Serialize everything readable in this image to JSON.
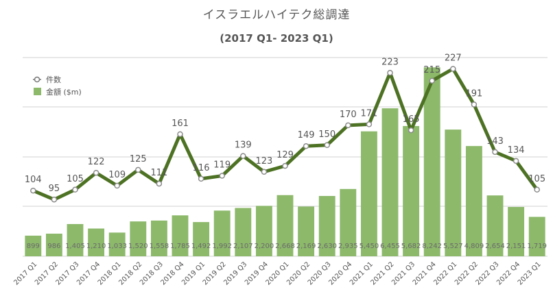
{
  "chart_data": {
    "type": "bar",
    "title": "イスラエルハイテク総調達",
    "subtitle": "(2017 Q1- 2023 Q1)",
    "categories": [
      "2017 Q1",
      "2017 Q2",
      "2017 Q3",
      "2017 Q4",
      "2018 Q1",
      "2018 Q2",
      "2018 Q3",
      "2018 Q4",
      "2019 Q1",
      "2019 Q2",
      "2019 Q3",
      "2019 Q4",
      "2020 Q1",
      "2020 Q2",
      "2020 Q3",
      "2020 Q4",
      "2021 Q1",
      "2021 Q2",
      "2021 Q3",
      "2021 Q4",
      "2022 Q1",
      "2022 Q2",
      "2022 Q3",
      "2022 Q4",
      "2023 Q1"
    ],
    "series": [
      {
        "name": "金額 ($m)",
        "type": "bar",
        "color": "#8db96b",
        "values": [
          899,
          986,
          1405,
          1210,
          1033,
          1520,
          1558,
          1785,
          1492,
          1992,
          2107,
          2200,
          2668,
          2169,
          2630,
          2935,
          5450,
          6455,
          5682,
          8242,
          5527,
          4809,
          2654,
          2151,
          1719
        ],
        "labels": [
          "899",
          "986",
          "1,405",
          "1,210",
          "1,033",
          "1,520",
          "1,558",
          "1,785",
          "1,492",
          "1,992",
          "2,107",
          "2,200",
          "2,668",
          "2,169",
          "2,630",
          "2,935",
          "5,450",
          "6,455",
          "5,682",
          "8,242",
          "5,527",
          "4,809",
          "2,654",
          "2,151",
          "1,719"
        ]
      },
      {
        "name": "件数",
        "type": "line",
        "color": "#4d7223",
        "values": [
          104,
          95,
          105,
          122,
          109,
          125,
          111,
          161,
          116,
          119,
          139,
          123,
          129,
          149,
          150,
          170,
          171,
          223,
          165,
          215,
          227,
          191,
          143,
          134,
          105
        ]
      }
    ],
    "grid": true,
    "legend_position": "top-left"
  }
}
